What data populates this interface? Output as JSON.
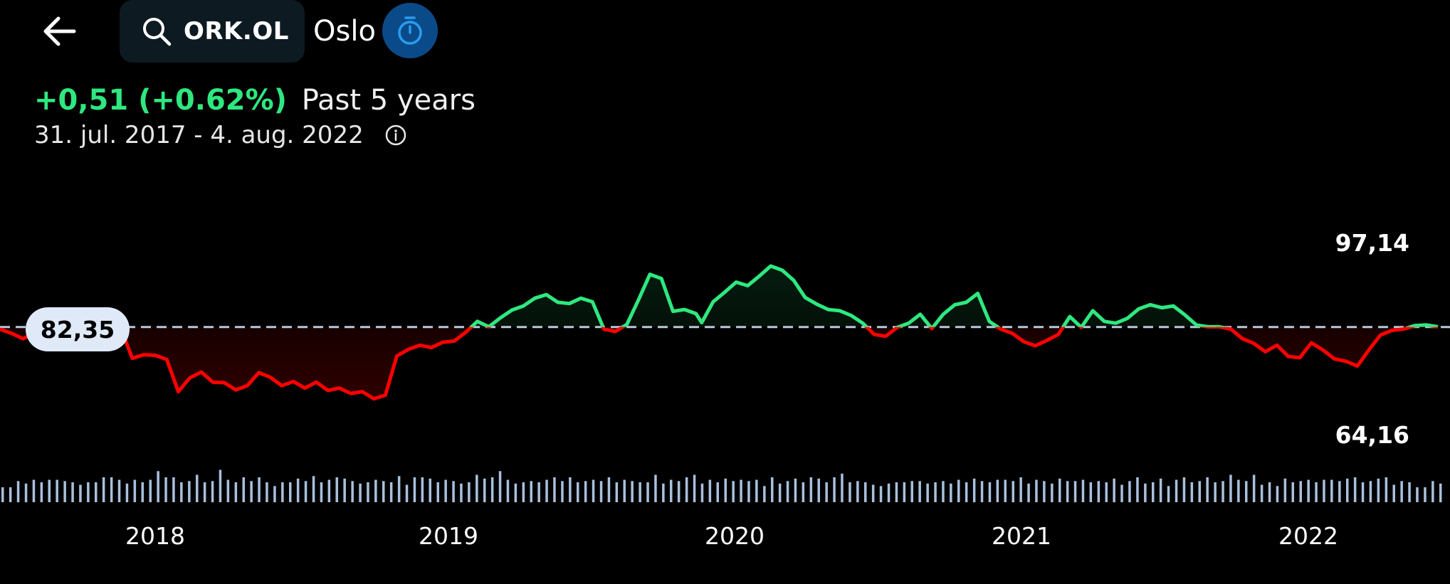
{
  "header": {
    "ticker": "ORK.OL",
    "exchange": "Oslo",
    "icons": {
      "back": "arrow-left-icon",
      "search": "search-icon",
      "timer": "stopwatch-icon"
    }
  },
  "summary": {
    "change": "+0,51 (+0.62%)",
    "period": "Past 5 years",
    "date_range": "31. jul. 2017 - 4. aug. 2022"
  },
  "colors": {
    "up": "#2ee87f",
    "down": "#ff0000",
    "reference": "#b8c8dc",
    "volume": "#a9c0dc",
    "accent": "#0b4a88"
  },
  "chart_data": {
    "type": "line",
    "reference_value": 82.35,
    "reference_label": "82,35",
    "y_high_label": "97,14",
    "y_low_label": "64,16",
    "ylim": [
      64.16,
      97.14
    ],
    "x_ticks": [
      "2018",
      "2019",
      "2020",
      "2021",
      "2022"
    ],
    "series": [
      {
        "x": [
          2017.58,
          2017.62,
          2017.66,
          2017.7,
          2017.74,
          2017.78,
          2017.8,
          2017.84,
          2017.88,
          2017.92,
          2017.96,
          2018.0,
          2018.04,
          2018.08,
          2018.12,
          2018.16,
          2018.2,
          2018.24,
          2018.28,
          2018.32,
          2018.36,
          2018.4,
          2018.44,
          2018.48,
          2018.52,
          2018.56,
          2018.6,
          2018.64,
          2018.68,
          2018.72,
          2018.76,
          2018.8,
          2018.84,
          2018.88,
          2018.92,
          2018.96,
          2019.0,
          2019.04,
          2019.08,
          2019.12,
          2019.16,
          2019.2,
          2019.24,
          2019.28,
          2019.32,
          2019.36,
          2019.4,
          2019.44,
          2019.48,
          2019.52,
          2019.56,
          2019.6,
          2019.64,
          2019.68,
          2019.72,
          2019.76,
          2019.8,
          2019.84,
          2019.88,
          2019.92,
          2019.96,
          2020.0,
          2020.02,
          2020.06,
          2020.1,
          2020.14,
          2020.18,
          2020.22,
          2020.26,
          2020.3,
          2020.34,
          2020.38,
          2020.42,
          2020.46,
          2020.5,
          2020.54,
          2020.58,
          2020.62,
          2020.66,
          2020.7,
          2020.74,
          2020.78,
          2020.82,
          2020.86,
          2020.9,
          2020.94,
          2020.98,
          2021.02,
          2021.06,
          2021.1,
          2021.14,
          2021.18,
          2021.22,
          2021.26,
          2021.3,
          2021.34,
          2021.38,
          2021.42,
          2021.46,
          2021.5,
          2021.54,
          2021.58,
          2021.62,
          2021.66,
          2021.7,
          2021.74,
          2021.78,
          2021.82,
          2021.86,
          2021.9,
          2021.94,
          2021.98,
          2022.02,
          2022.06,
          2022.1,
          2022.14,
          2022.18,
          2022.22,
          2022.26,
          2022.3,
          2022.34,
          2022.38,
          2022.42,
          2022.46,
          2022.5,
          2022.54,
          2022.58
        ],
        "values": [
          82.0,
          81.3,
          80.4,
          81.3,
          82.7,
          84.0,
          80.7,
          81.6,
          84.2,
          85.0,
          84.5,
          82.2,
          77.1,
          77.7,
          77.6,
          76.9,
          71.5,
          73.8,
          74.8,
          73.1,
          73.0,
          71.8,
          72.5,
          74.7,
          73.9,
          72.5,
          73.2,
          72.1,
          73.1,
          71.7,
          72.1,
          71.2,
          71.5,
          70.3,
          70.9,
          77.5,
          78.6,
          79.3,
          78.9,
          79.8,
          80.0,
          81.5,
          83.3,
          82.4,
          83.9,
          85.2,
          85.9,
          87.2,
          87.8,
          86.5,
          86.3,
          87.2,
          86.6,
          82.0,
          81.6,
          82.8,
          86.9,
          91.2,
          90.5,
          85.0,
          85.3,
          84.6,
          83.1,
          86.6,
          88.2,
          89.9,
          89.3,
          90.9,
          92.6,
          91.9,
          90.2,
          87.3,
          86.2,
          85.3,
          85.1,
          84.3,
          83.0,
          81.1,
          80.8,
          82.3,
          83.0,
          84.5,
          82.1,
          84.5,
          86.1,
          86.5,
          88.0,
          83.3,
          82.0,
          81.3,
          79.9,
          79.2,
          80.1,
          81.1,
          84.1,
          82.3,
          85.1,
          83.3,
          83.0,
          83.8,
          85.4,
          86.1,
          85.6,
          85.9,
          84.4,
          82.7,
          82.4,
          82.4,
          82.0,
          80.4,
          79.6,
          78.2,
          79.3,
          77.4,
          77.2,
          79.7,
          78.5,
          77.0,
          76.6,
          75.8,
          78.5,
          81.0,
          81.8,
          82.0,
          82.6,
          82.7,
          82.4
        ]
      }
    ],
    "volume": [
      12,
      12,
      17,
      15,
      18,
      16,
      18,
      18,
      17,
      16,
      14,
      16,
      16,
      20,
      20,
      18,
      15,
      18,
      16,
      18,
      25,
      20,
      20,
      16,
      17,
      22,
      16,
      17,
      26,
      18,
      16,
      20,
      17,
      20,
      16,
      13,
      16,
      16,
      19,
      17,
      21,
      16,
      18,
      20,
      19,
      17,
      15,
      16,
      18,
      17,
      16,
      21,
      14,
      20,
      20,
      19,
      16,
      18,
      17,
      15,
      16,
      22,
      19,
      20,
      25,
      18,
      15,
      16,
      17,
      16,
      18,
      20,
      17,
      20,
      16,
      17,
      18,
      17,
      20,
      16,
      18,
      17,
      16,
      16,
      22,
      15,
      18,
      17,
      20,
      22,
      15,
      18,
      16,
      19,
      17,
      18,
      17,
      18,
      13,
      20,
      15,
      17,
      19,
      16,
      20,
      19,
      16,
      20,
      23,
      16,
      17,
      16,
      14,
      13,
      15,
      16,
      16,
      17,
      17,
      15,
      16,
      17,
      15,
      18,
      16,
      19,
      17,
      16,
      18,
      18,
      17,
      20,
      15,
      18,
      17,
      15,
      19,
      17,
      17,
      18,
      16,
      17,
      16,
      19,
      14,
      17,
      20,
      15,
      16,
      19,
      13,
      18,
      20,
      16,
      17,
      20,
      16,
      17,
      22,
      18,
      17,
      22,
      14,
      16,
      13,
      19,
      16,
      17,
      18,
      16,
      18,
      18,
      17,
      19,
      20,
      16,
      17,
      19,
      20,
      14,
      17,
      16,
      12,
      12,
      17,
      15
    ]
  }
}
